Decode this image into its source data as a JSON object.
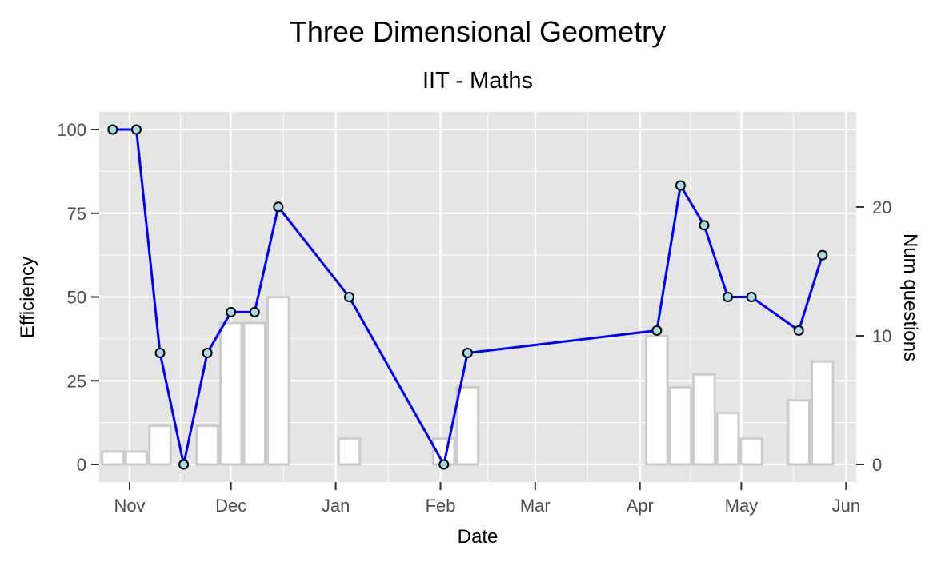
{
  "chart_data": {
    "type": "bar+line",
    "title": "Three Dimensional Geometry",
    "subtitle": "IIT - Maths",
    "xlabel": "Date",
    "ylabel": "Efficiency",
    "y2label": "Num questions",
    "x_ticks": [
      "Nov",
      "Dec",
      "Jan",
      "Feb",
      "Mar",
      "Apr",
      "May",
      "Jun"
    ],
    "x_tick_dates": [
      "2020-11-01",
      "2020-12-01",
      "2021-01-01",
      "2021-02-01",
      "2021-03-01",
      "2021-04-01",
      "2021-05-01",
      "2021-06-01"
    ],
    "y_ticks": [
      0,
      25,
      50,
      75,
      100
    ],
    "y2_ticks": [
      0,
      10,
      20
    ],
    "ylim": [
      0,
      100
    ],
    "y2lim": [
      0,
      26
    ],
    "xlim": [
      "2020-10-23",
      "2021-06-04"
    ],
    "grid": true,
    "colors": {
      "panel": "#e5e5e5",
      "grid": "#ffffff",
      "line": "#0000ff",
      "point_fill": "#a6dce6",
      "bar_fill": "#ffffff",
      "bar_stroke": "#cccccc"
    },
    "series": [
      {
        "type": "bar",
        "axis": "right",
        "x": [
          "2020-10-27",
          "2020-11-03",
          "2020-11-10",
          "2020-11-17",
          "2020-11-24",
          "2020-12-01",
          "2020-12-08",
          "2020-12-15",
          "2021-01-05",
          "2021-02-02",
          "2021-02-09",
          "2021-04-06",
          "2021-04-13",
          "2021-04-20",
          "2021-04-27",
          "2021-05-04",
          "2021-05-18",
          "2021-05-25"
        ],
        "values": [
          1,
          1,
          3,
          0,
          3,
          11,
          11,
          13,
          2,
          2,
          6,
          10,
          6,
          7,
          4,
          2,
          5,
          8
        ]
      },
      {
        "type": "line",
        "axis": "left",
        "x": [
          "2020-10-27",
          "2020-11-03",
          "2020-11-10",
          "2020-11-17",
          "2020-11-24",
          "2020-12-01",
          "2020-12-08",
          "2020-12-15",
          "2021-01-05",
          "2021-02-02",
          "2021-02-09",
          "2021-04-06",
          "2021-04-13",
          "2021-04-20",
          "2021-04-27",
          "2021-05-04",
          "2021-05-18",
          "2021-05-25"
        ],
        "values": [
          100,
          100,
          33.3,
          0,
          33.3,
          45.5,
          45.5,
          76.9,
          50,
          0,
          33.3,
          40,
          83.3,
          71.4,
          50,
          50,
          40,
          62.5
        ]
      }
    ]
  }
}
